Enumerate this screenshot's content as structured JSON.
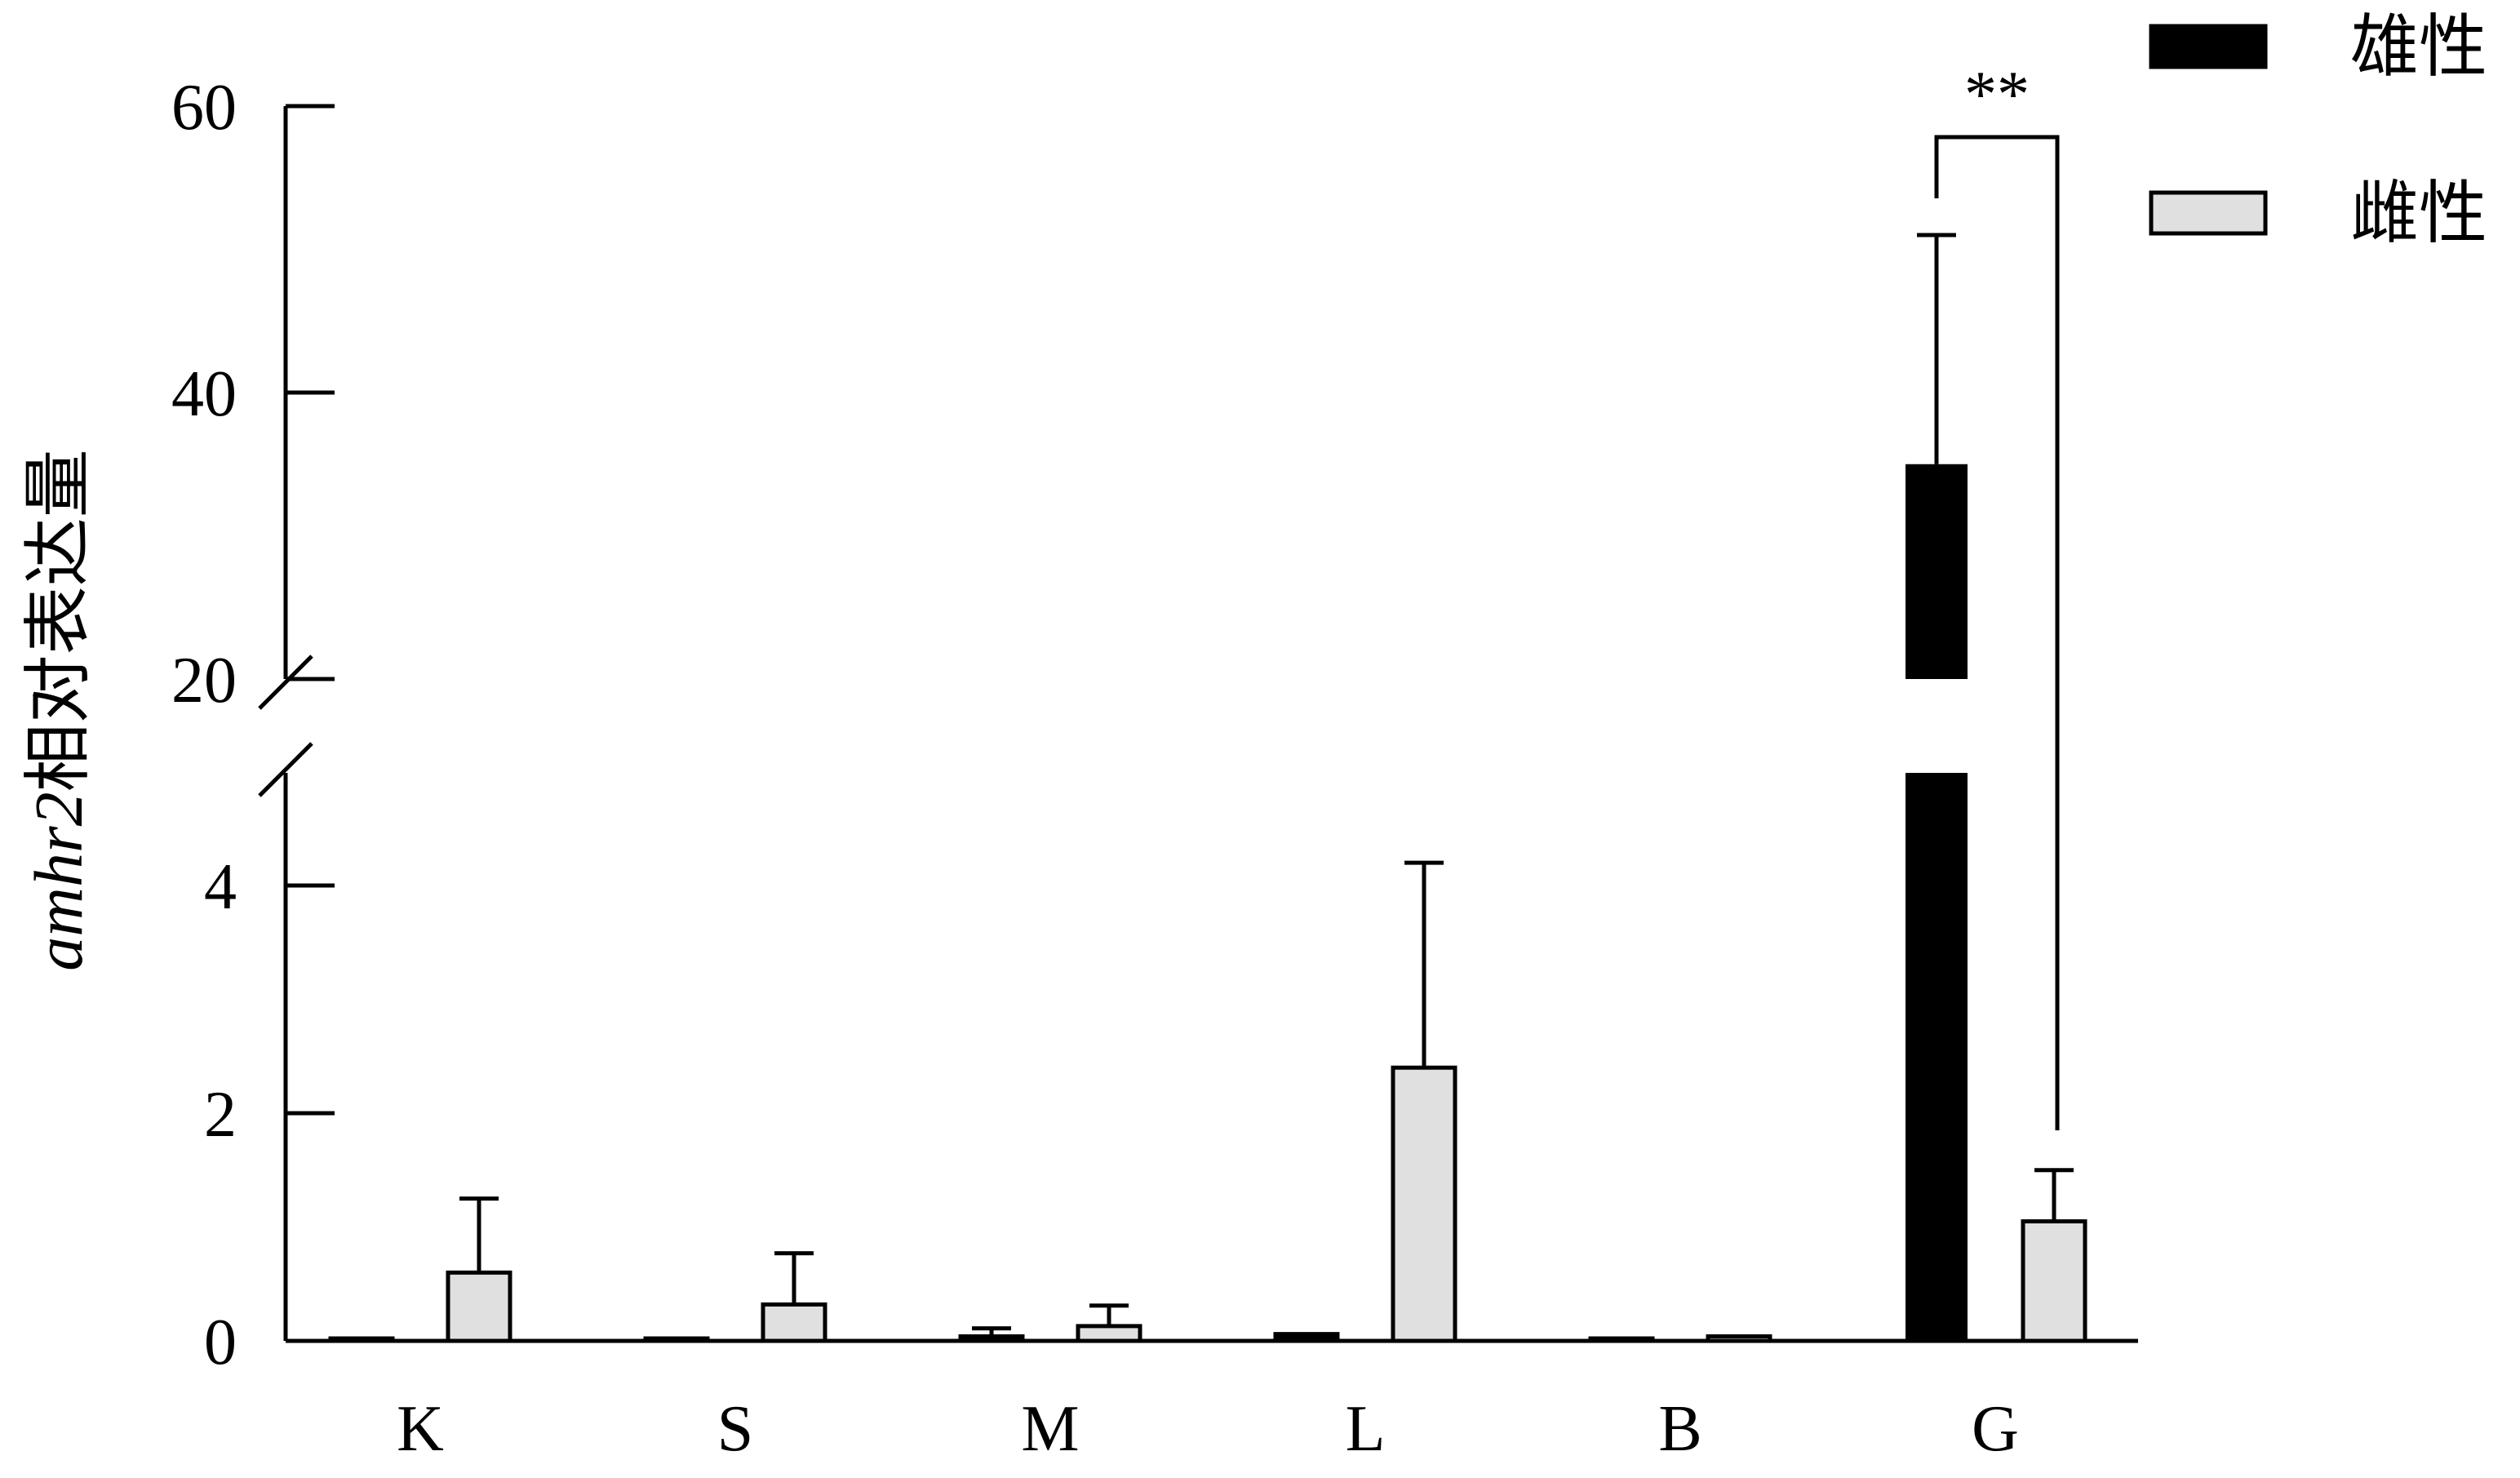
{
  "chart_data": {
    "type": "bar",
    "categories": [
      "K",
      "S",
      "M",
      "L",
      "B",
      "G"
    ],
    "series": [
      {
        "name": "雄性",
        "color": "#000000",
        "values": [
          0.02,
          0.02,
          0.04,
          0.06,
          0.01,
          35
        ],
        "errors": [
          0,
          0,
          0.07,
          0,
          0,
          16
        ]
      },
      {
        "name": "雌性",
        "color": "#e0e0e0",
        "values": [
          0.6,
          0.32,
          0.13,
          2.4,
          0.04,
          1.05
        ],
        "errors": [
          0.65,
          0.45,
          0.18,
          1.8,
          0,
          0.45
        ]
      }
    ],
    "ylabel_italic": "amhr2",
    "ylabel_rest": "相对表达量",
    "y_axis_break": {
      "lower_range": [
        0,
        5
      ],
      "upper_range": [
        20,
        60
      ]
    },
    "lower_ticks": [
      "0",
      "2",
      "4"
    ],
    "upper_ticks": [
      "20",
      "40",
      "60"
    ],
    "annotation": {
      "text": "**",
      "category": "G"
    },
    "legend_position": "top-right"
  }
}
